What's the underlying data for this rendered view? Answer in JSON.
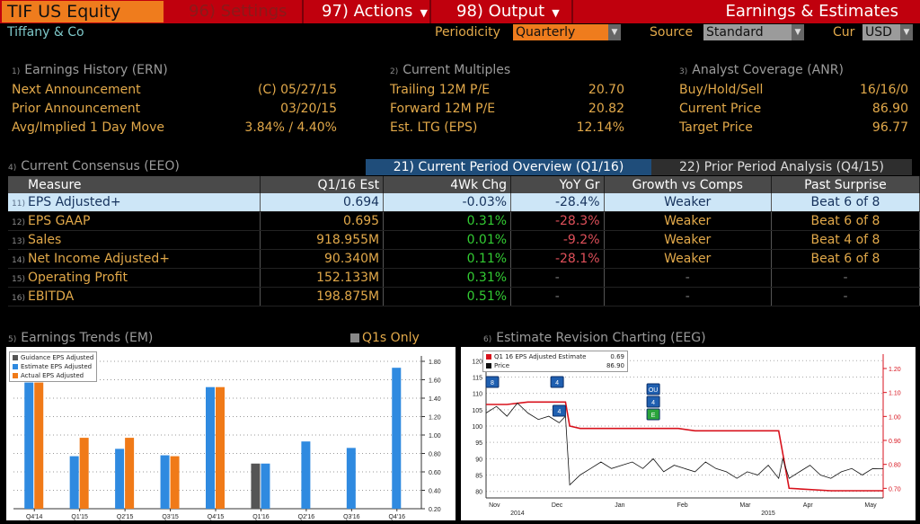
{
  "header": {
    "ticker": "TIF US Equity",
    "menu": [
      {
        "num": "96)",
        "label": "Settings"
      },
      {
        "num": "97)",
        "label": "Actions"
      },
      {
        "num": "98)",
        "label": "Output"
      }
    ],
    "title": "Earnings & Estimates",
    "company": "Tiffany & Co",
    "periodicity_label": "Periodicity",
    "periodicity_value": "Quarterly",
    "source_label": "Source",
    "source_value": "Standard",
    "cur_label": "Cur",
    "cur_value": "USD",
    "colors": {
      "bar": "#c0000d",
      "ticker_bg": "#ef7c1d",
      "label": "#e2a94a"
    }
  },
  "earnings_history": {
    "num": "1)",
    "title": "Earnings History (ERN)",
    "rows": [
      {
        "label": "Next Announcement",
        "value": "(C)  05/27/15"
      },
      {
        "label": "Prior Announcement",
        "value": "03/20/15"
      },
      {
        "label": "Avg/Implied 1 Day Move",
        "value": "3.84% / 4.40%"
      }
    ]
  },
  "current_multiples": {
    "num": "2)",
    "title": "Current Multiples",
    "rows": [
      {
        "label": "Trailing 12M P/E",
        "value": "20.70"
      },
      {
        "label": "Forward 12M P/E",
        "value": "20.82"
      },
      {
        "label": "Est. LTG (EPS)",
        "value": "12.14%"
      }
    ]
  },
  "analyst_coverage": {
    "num": "3)",
    "title": "Analyst Coverage (ANR)",
    "rows": [
      {
        "label": "Buy/Hold/Sell",
        "value": "16/16/0"
      },
      {
        "label": "Current Price",
        "value": "86.90"
      },
      {
        "label": "Target Price",
        "value": "96.77"
      }
    ]
  },
  "consensus": {
    "num": "4)",
    "title": "Current Consensus (EEO)",
    "tab_current": "21) Current Period Overview (Q1/16)",
    "tab_prior": "22) Prior Period Analysis (Q4/15)",
    "columns": [
      "Measure",
      "Q1/16 Est",
      "4Wk Chg",
      "YoY Gr",
      "Growth vs Comps",
      "Past Surprise"
    ],
    "rows": [
      {
        "num": "11)",
        "measure": "EPS Adjusted+",
        "est": "0.694",
        "chg": "-0.03%",
        "yoy": "-28.4%",
        "comps": "Weaker",
        "surprise": "Beat 6 of 8"
      },
      {
        "num": "12)",
        "measure": "EPS GAAP",
        "est": "0.695",
        "chg": "0.31%",
        "yoy": "-28.3%",
        "comps": "Weaker",
        "surprise": "Beat 6 of 8"
      },
      {
        "num": "13)",
        "measure": "Sales",
        "est": "918.955M",
        "chg": "0.01%",
        "yoy": "-9.2%",
        "comps": "Weaker",
        "surprise": "Beat 4 of 8"
      },
      {
        "num": "14)",
        "measure": "Net Income Adjusted+",
        "est": "90.340M",
        "chg": "0.11%",
        "yoy": "-28.1%",
        "comps": "Weaker",
        "surprise": "Beat 6 of 8"
      },
      {
        "num": "15)",
        "measure": "Operating Profit",
        "est": "152.133M",
        "chg": "0.31%",
        "yoy": "-",
        "comps": "-",
        "surprise": "-"
      },
      {
        "num": "16)",
        "measure": "EBITDA",
        "est": "198.875M",
        "chg": "0.51%",
        "yoy": "-",
        "comps": "-",
        "surprise": "-"
      }
    ]
  },
  "trends": {
    "num": "5)",
    "title": "Earnings Trends (EM)",
    "q1_only_label": "Q1s Only"
  },
  "revision": {
    "num": "6)",
    "title": "Estimate Revision Charting (EEG)"
  },
  "chart_data": [
    {
      "type": "bar",
      "categories": [
        "Q4'14",
        "Q1'15",
        "Q2'15",
        "Q3'15",
        "Q4'15",
        "Q1'16",
        "Q2'16",
        "Q3'16",
        "Q4'16"
      ],
      "series": [
        {
          "name": "Guidance EPS Adjusted",
          "color": "#555555",
          "values": [
            null,
            null,
            null,
            null,
            null,
            0.69,
            null,
            null,
            null
          ]
        },
        {
          "name": "Estimate EPS Adjusted",
          "color": "#2f8ae0",
          "values": [
            1.57,
            0.77,
            0.85,
            0.78,
            1.52,
            0.69,
            0.93,
            0.86,
            1.73
          ]
        },
        {
          "name": "Actual EPS Adjusted",
          "color": "#f07a18",
          "values": [
            1.57,
            0.97,
            0.97,
            0.77,
            1.52,
            null,
            null,
            null,
            null
          ]
        }
      ],
      "ylim": [
        0.2,
        1.8
      ],
      "yticks": [
        "0.20",
        "0.40",
        "0.60",
        "0.80",
        "1.00",
        "1.20",
        "1.40",
        "1.60",
        "1.80"
      ],
      "legend": "top-left"
    },
    {
      "type": "line",
      "x_labels": [
        "Nov",
        "Dec",
        "Jan",
        "Feb",
        "Mar",
        "Apr",
        "May"
      ],
      "year_labels": [
        "2014",
        "2015"
      ],
      "left_ticks": [
        "80",
        "85",
        "90",
        "95",
        "100",
        "105",
        "110",
        "115",
        "120"
      ],
      "right_ticks": [
        "0.70",
        "0.80",
        "0.90",
        "1.00",
        "1.10",
        "1.20"
      ],
      "series": [
        {
          "name": "Q1 16 EPS Adjusted Estimate",
          "last": "0.69",
          "color": "#d8121c",
          "axis": "right",
          "x": [
            0,
            10,
            20,
            31,
            38,
            40,
            45,
            60,
            75,
            92,
            100,
            125,
            140,
            145,
            165,
            190
          ],
          "y": [
            1.05,
            1.05,
            1.06,
            1.06,
            1.06,
            0.96,
            0.95,
            0.95,
            0.95,
            0.95,
            0.94,
            0.94,
            0.94,
            0.7,
            0.69,
            0.69
          ]
        },
        {
          "name": "Price",
          "last": "86.90",
          "color": "#111111",
          "axis": "left",
          "x": [
            0,
            5,
            10,
            15,
            20,
            25,
            30,
            35,
            38,
            40,
            45,
            50,
            55,
            60,
            65,
            70,
            75,
            80,
            85,
            90,
            95,
            100,
            105,
            110,
            115,
            120,
            125,
            130,
            135,
            140,
            142,
            145,
            150,
            155,
            160,
            165,
            170,
            175,
            180,
            185,
            190
          ],
          "y": [
            104,
            106,
            103,
            107,
            104,
            102,
            103,
            101,
            103,
            82,
            85,
            87,
            89,
            87,
            88,
            89,
            87,
            90,
            86,
            88,
            87,
            86,
            89,
            87,
            86,
            84,
            86,
            85,
            88,
            84,
            90,
            84,
            86,
            88,
            85,
            84,
            86,
            87,
            85,
            87,
            86.9
          ]
        }
      ],
      "markers": [
        {
          "label": "8"
        },
        {
          "label": "4"
        },
        {
          "label": "4"
        },
        {
          "label": "OU"
        },
        {
          "label": "4"
        },
        {
          "label": "E"
        }
      ],
      "legend": "top-left"
    }
  ]
}
